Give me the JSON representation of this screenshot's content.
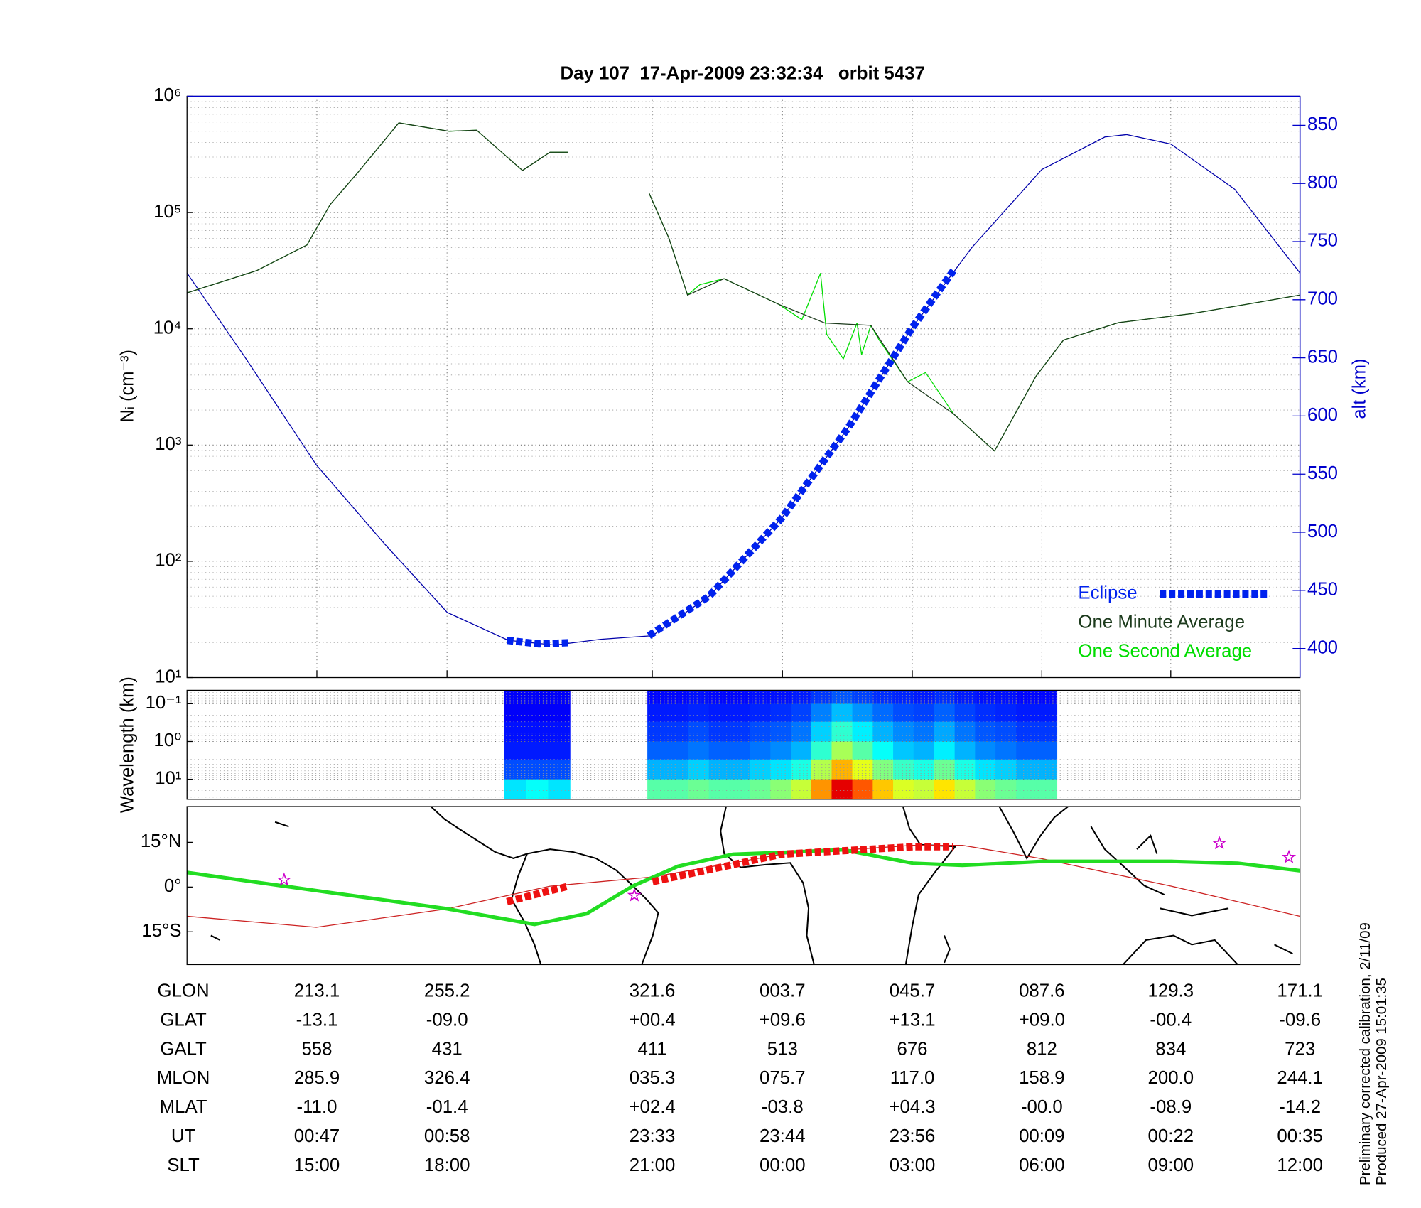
{
  "chart_data": [
    {
      "type": "line",
      "title": "Day 107  17-Apr-2009 23:32:34   orbit 5437",
      "ylabel": "Nᵢ (cm⁻³)",
      "y2label": "alt (km)",
      "log_scale": "y",
      "xlim": [
        171.1,
        531.1
      ],
      "xticks": [
        213.1,
        255.2,
        321.6,
        {
          "value": 363.7,
          "label": "003.7"
        },
        {
          "value": 405.7,
          "label": "045.7"
        },
        {
          "value": 447.6,
          "label": "087.6"
        },
        {
          "value": 489.3,
          "label": "129.3"
        },
        {
          "value": 531.1,
          "label": "171.1"
        }
      ],
      "ylim": [
        10,
        1000000
      ],
      "yticks": [
        {
          "value": 10,
          "label": "10¹"
        },
        {
          "value": 100,
          "label": "10²"
        },
        {
          "value": 1000,
          "label": "10³"
        },
        {
          "value": 10000,
          "label": "10⁴"
        },
        {
          "value": 100000,
          "label": "10⁵"
        },
        {
          "value": 1000000,
          "label": "10⁶"
        }
      ],
      "y2lim": [
        375,
        875
      ],
      "y2ticks": [
        400,
        450,
        500,
        550,
        600,
        650,
        700,
        750,
        800,
        850
      ],
      "y2color": "#0000cc",
      "grid": true,
      "legend": "lower right",
      "series": [
        {
          "color": "#0000aa",
          "axis": "y2",
          "style": "thin",
          "x": [
            171.1,
            190,
            212.9,
            235,
            255.3,
            275,
            290,
            305,
            321.6,
            340,
            363.7,
            385,
            405.7,
            425,
            447.6,
            468,
            475,
            489.3,
            510,
            531.1
          ],
          "values": [
            723,
            650,
            558,
            490,
            431,
            407,
            403,
            408,
            411,
            445,
            513,
            590,
            676,
            745,
            812,
            840,
            842,
            834,
            795,
            723
          ]
        },
        {
          "name": "One Second Average",
          "color": "#00dd00",
          "style": "thin",
          "x": [
            171.1,
            193.6,
            209.9,
            217.4,
            226.3,
            239.6,
            255.9,
            264.8,
            279.6,
            288.5,
            294.4,
            null,
            320.5,
            327,
            333.0,
            337,
            344.8,
            362.6,
            370,
            376.0,
            378,
            383.4,
            387.8,
            389.3,
            392.3,
            395,
            404.2,
            410,
            419.0,
            432.3,
            445.7,
            454.6,
            472.4,
            496.1,
            531.1
          ],
          "values": [
            20400,
            31600,
            52500,
            117000,
            220000,
            590000,
            500000,
            510000,
            230000,
            330000,
            330000,
            null,
            148000,
            60000,
            19500,
            24000,
            27000,
            16200,
            12000,
            30000,
            9000,
            5500,
            11200,
            6000,
            10700,
            8000,
            3500,
            4200,
            1860,
            890,
            3900,
            8000,
            11300,
            13500,
            19500
          ]
        },
        {
          "name": "One Minute Average",
          "color": "#1c3a1c",
          "style": "thin",
          "x": [
            171.1,
            193.6,
            209.9,
            217.4,
            226.3,
            239.6,
            255.9,
            264.8,
            279.6,
            288.5,
            294.4,
            null,
            320.5,
            327,
            333.0,
            344.8,
            362.6,
            377.5,
            392.3,
            404.2,
            419.0,
            432.3,
            445.7,
            454.6,
            472.4,
            496.1,
            531.1
          ],
          "values": [
            20400,
            31600,
            52500,
            117000,
            220000,
            590000,
            500000,
            510000,
            230000,
            330000,
            330000,
            null,
            148000,
            60000,
            19500,
            27000,
            16200,
            11200,
            10700,
            3500,
            1860,
            890,
            3900,
            8000,
            11300,
            13500,
            19500
          ]
        },
        {
          "name": "Eclipse",
          "color": "#0022ee",
          "axis": "y2",
          "style": "dashed",
          "x": [
            274.6,
            285,
            294.4,
            null,
            320.5,
            340,
            363.7,
            385,
            405.7,
            419.0
          ],
          "values": [
            407,
            404,
            405,
            null,
            411,
            445,
            513,
            590,
            676,
            725
          ]
        }
      ]
    },
    {
      "type": "heatmap",
      "ylabel": "Wavelength (km)",
      "log_scale": "y",
      "xlim": [
        171.1,
        531.1
      ],
      "ylim": [
        34,
        0.044
      ],
      "yticks": [
        {
          "value": 0.1,
          "label": "10⁻¹"
        },
        {
          "value": 1,
          "label": "10⁰"
        },
        {
          "value": 10,
          "label": "10¹"
        }
      ],
      "grid": true,
      "colormap": "jet",
      "x_edges": [
        273.7,
        280.8,
        287.9,
        295.0,
        320.0,
        326.6,
        333.3,
        339.9,
        346.5,
        353.1,
        359.8,
        366.4,
        373.0,
        379.6,
        386.3,
        392.9,
        399.5,
        406.1,
        412.8,
        419.4,
        426.0,
        432.6,
        439.3,
        445.9,
        452.5
      ],
      "y_edges": [
        0.044,
        0.1,
        0.3,
        1,
        3,
        10,
        34
      ],
      "values": [
        [
          0.12,
          0.12,
          0.12,
          null,
          0.13,
          0.13,
          0.14,
          0.13,
          0.13,
          0.14,
          0.14,
          0.15,
          0.18,
          0.21,
          0.19,
          0.17,
          0.16,
          0.15,
          0.17,
          0.15,
          0.14,
          0.14,
          0.13,
          0.13
        ],
        [
          0.12,
          0.12,
          0.12,
          null,
          0.15,
          0.15,
          0.16,
          0.15,
          0.15,
          0.16,
          0.17,
          0.19,
          0.25,
          0.31,
          0.27,
          0.23,
          0.2,
          0.19,
          0.22,
          0.19,
          0.17,
          0.16,
          0.15,
          0.15
        ],
        [
          0.14,
          0.14,
          0.14,
          null,
          0.18,
          0.18,
          0.2,
          0.18,
          0.18,
          0.2,
          0.21,
          0.24,
          0.33,
          0.42,
          0.36,
          0.3,
          0.26,
          0.24,
          0.29,
          0.24,
          0.21,
          0.2,
          0.18,
          0.18
        ],
        [
          0.15,
          0.15,
          0.15,
          null,
          0.22,
          0.22,
          0.24,
          0.22,
          0.22,
          0.24,
          0.26,
          0.3,
          0.42,
          0.54,
          0.46,
          0.38,
          0.32,
          0.3,
          0.36,
          0.3,
          0.26,
          0.24,
          0.22,
          0.22
        ],
        [
          0.2,
          0.2,
          0.2,
          null,
          0.3,
          0.3,
          0.33,
          0.3,
          0.3,
          0.33,
          0.35,
          0.4,
          0.55,
          0.7,
          0.6,
          0.5,
          0.43,
          0.4,
          0.48,
          0.4,
          0.35,
          0.33,
          0.3,
          0.3
        ],
        [
          0.35,
          0.38,
          0.35,
          null,
          0.46,
          0.46,
          0.48,
          0.46,
          0.46,
          0.48,
          0.51,
          0.57,
          0.73,
          0.9,
          0.79,
          0.68,
          0.59,
          0.57,
          0.65,
          0.57,
          0.51,
          0.48,
          0.46,
          0.46
        ]
      ]
    },
    {
      "type": "line",
      "xlim": [
        171.1,
        531.1
      ],
      "ylim": [
        -26,
        27
      ],
      "yticks": [
        {
          "value": -15,
          "label": "15°S"
        },
        {
          "value": 0,
          "label": "0°"
        },
        {
          "value": 15,
          "label": "15°N"
        }
      ],
      "grid": false,
      "series": [
        {
          "color": "#cc2222",
          "style": "thin",
          "x": [
            171.1,
            212.9,
            255.3,
            288.5,
            321.7,
            363.5,
            405.9,
            421.9,
            447.7,
            489.5,
            531.1
          ],
          "values": [
            -9.8,
            -13.5,
            -7.3,
            0.3,
            3.4,
            11,
            14,
            14,
            9.5,
            0.3,
            -9.8
          ]
        },
        {
          "color": "#22dd22",
          "style": "thick",
          "x": [
            171.1,
            212.9,
            255.3,
            283.5,
            300.4,
            315.2,
            330.0,
            347.8,
            363.5,
            383.4,
            405.9,
            421.9,
            447.7,
            489.5,
            510.9,
            531.1
          ],
          "values": [
            4.9,
            -1.2,
            -7.3,
            -12.5,
            -8.9,
            0.3,
            7,
            11,
            11.6,
            12.5,
            8,
            7.3,
            8.6,
            8.6,
            8,
            5.5
          ]
        },
        {
          "color": "#ee1111",
          "style": "dashed",
          "x": [
            274.6,
            294.5,
            null,
            321.7,
            363.5,
            405.9,
            419.0
          ],
          "values": [
            -4.9,
            0.3,
            null,
            1.8,
            11,
            13.5,
            13.5
          ]
        },
        {
          "color": "#cc00cc",
          "marker": "star",
          "x": [
            202.5,
            315.8,
            505.0,
            527.5
          ],
          "values": [
            2.4,
            -2.8,
            14.7,
            10
          ]
        }
      ]
    }
  ],
  "table": {
    "header": "GLON",
    "rows": [
      {
        "label": "GLAT",
        "cells": [
          "-13.1",
          "-09.0",
          "+00.4",
          "+09.6",
          "+13.1",
          "+09.0",
          "-00.4",
          "-09.6"
        ]
      },
      {
        "label": "GALT",
        "cells": [
          "558",
          "431",
          "411",
          "513",
          "676",
          "812",
          "834",
          "723"
        ]
      },
      {
        "label": "MLON",
        "cells": [
          "285.9",
          "326.4",
          "035.3",
          "075.7",
          "117.0",
          "158.9",
          "200.0",
          "244.1"
        ]
      },
      {
        "label": "MLAT",
        "cells": [
          "-11.0",
          "-01.4",
          "+02.4",
          "-03.8",
          "+04.3",
          "-00.0",
          "-08.9",
          "-14.2"
        ]
      },
      {
        "label": "UT",
        "cells": [
          "00:47",
          "00:58",
          "23:33",
          "23:44",
          "23:56",
          "00:09",
          "00:22",
          "00:35"
        ]
      },
      {
        "label": "SLT",
        "cells": [
          "15:00",
          "18:00",
          "21:00",
          "00:00",
          "03:00",
          "06:00",
          "09:00",
          "12:00"
        ]
      }
    ]
  },
  "note": [
    "Preliminary corrected calibration, 2/11/09",
    "Produced 27-Apr-2009 15:01:35"
  ]
}
